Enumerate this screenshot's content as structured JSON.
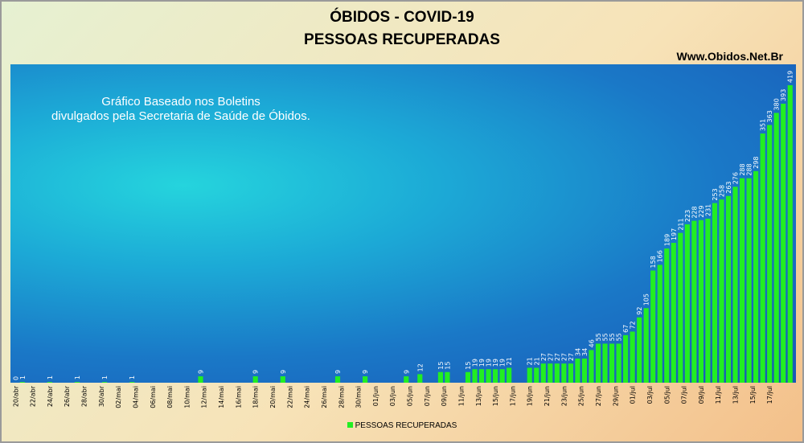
{
  "chart_data": {
    "type": "bar",
    "title": "ÓBIDOS - COVID-19",
    "subtitle": "PESSOAS RECUPERADAS",
    "source_label": "Www.Obidos.Net.Br",
    "annotation": [
      "Gráfico Baseado nos Boletins",
      "divulgados pela Secretaria de Saúde de Óbidos."
    ],
    "legend": "PESSOAS RECUPERADAS",
    "legend_position": "bottom",
    "grid": false,
    "bar_color": "#22ee22",
    "ylim": [
      0,
      430
    ],
    "tick_labels": [
      "20/abr",
      "22/abr",
      "24/abr",
      "26/abr",
      "28/abr",
      "30/abr",
      "02/mai",
      "04/mai",
      "06/mai",
      "08/mai",
      "10/mai",
      "12/mai",
      "14/mai",
      "16/mai",
      "18/mai",
      "20/mai",
      "22/mai",
      "24/mai",
      "26/mai",
      "28/mai",
      "30/mai",
      "01/jun",
      "03/jun",
      "05/jun",
      "07/jun",
      "09/jun",
      "11/jun",
      "13/jun",
      "15/jun",
      "17/jun",
      "19/jun",
      "21/jun",
      "23/jun",
      "25/jun",
      "27/jun",
      "29/jun",
      "01/jul",
      "03/jul",
      "05/jul",
      "07/jul",
      "09/jul",
      "11/jul",
      "13/jul",
      "15/jul",
      "17/jul"
    ],
    "series": [
      {
        "name": "PESSOAS RECUPERADAS",
        "values": [
          0,
          1,
          null,
          null,
          null,
          1,
          null,
          null,
          null,
          1,
          null,
          null,
          null,
          1,
          null,
          null,
          null,
          1,
          null,
          null,
          null,
          null,
          null,
          null,
          null,
          null,
          null,
          9,
          null,
          null,
          null,
          null,
          null,
          null,
          null,
          9,
          null,
          null,
          null,
          9,
          null,
          null,
          null,
          null,
          null,
          null,
          null,
          9,
          null,
          null,
          null,
          9,
          null,
          null,
          null,
          null,
          null,
          9,
          null,
          12,
          null,
          null,
          15,
          15,
          null,
          null,
          15,
          19,
          19,
          19,
          19,
          19,
          21,
          null,
          null,
          21,
          21,
          27,
          27,
          27,
          27,
          27,
          34,
          34,
          46,
          55,
          55,
          55,
          55,
          67,
          72,
          92,
          105,
          158,
          166,
          189,
          197,
          211,
          223,
          228,
          229,
          231,
          253,
          258,
          263,
          276,
          288,
          288,
          298,
          351,
          363,
          380,
          393,
          419
        ]
      }
    ]
  }
}
